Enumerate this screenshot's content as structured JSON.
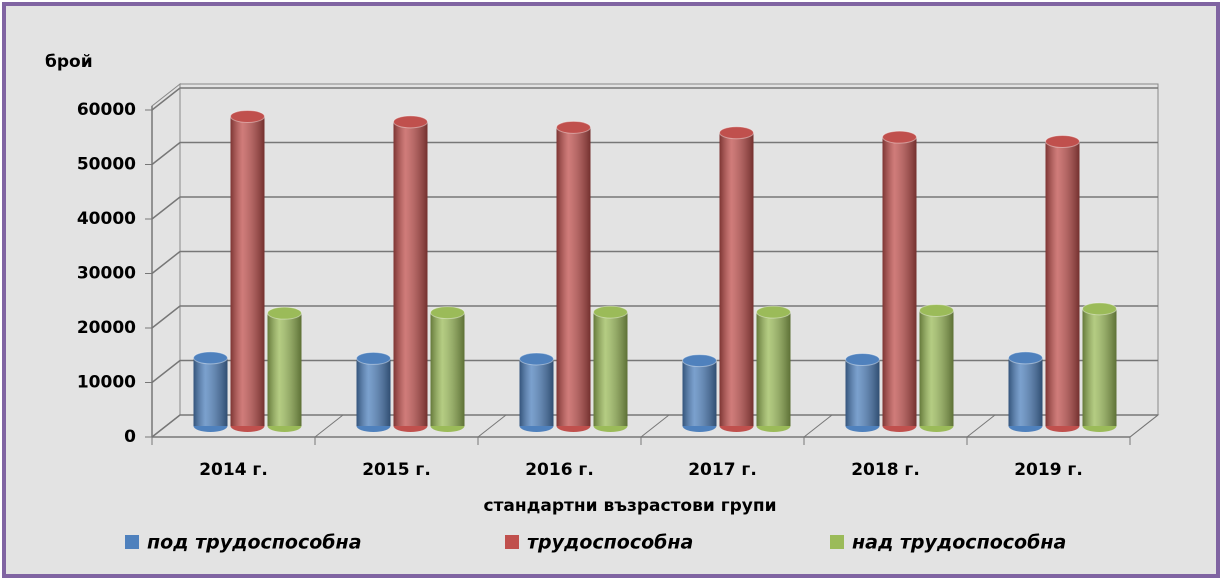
{
  "chart_data": {
    "type": "bar3d",
    "y_axis_label": "брой",
    "x_axis_label": "стандартни възрастови групи",
    "categories": [
      "2014 г.",
      "2015 г.",
      "2016 г.",
      "2017 г.",
      "2018 г.",
      "2019 г."
    ],
    "series": [
      {
        "name": "под трудоспособна",
        "color": "#4f81bd",
        "values": [
          12500,
          12400,
          12300,
          12000,
          12200,
          12500
        ]
      },
      {
        "name": "трудоспособна",
        "color": "#c0504d",
        "values": [
          56800,
          55800,
          54800,
          53800,
          53000,
          52200
        ]
      },
      {
        "name": "над трудоспособна",
        "color": "#9bbb59",
        "values": [
          20700,
          20800,
          20900,
          20900,
          21200,
          21500
        ]
      }
    ],
    "ylim": [
      0,
      60000
    ],
    "yticks": [
      0,
      10000,
      20000,
      30000,
      40000,
      50000,
      60000
    ],
    "grid": true,
    "legend": "bottom"
  }
}
